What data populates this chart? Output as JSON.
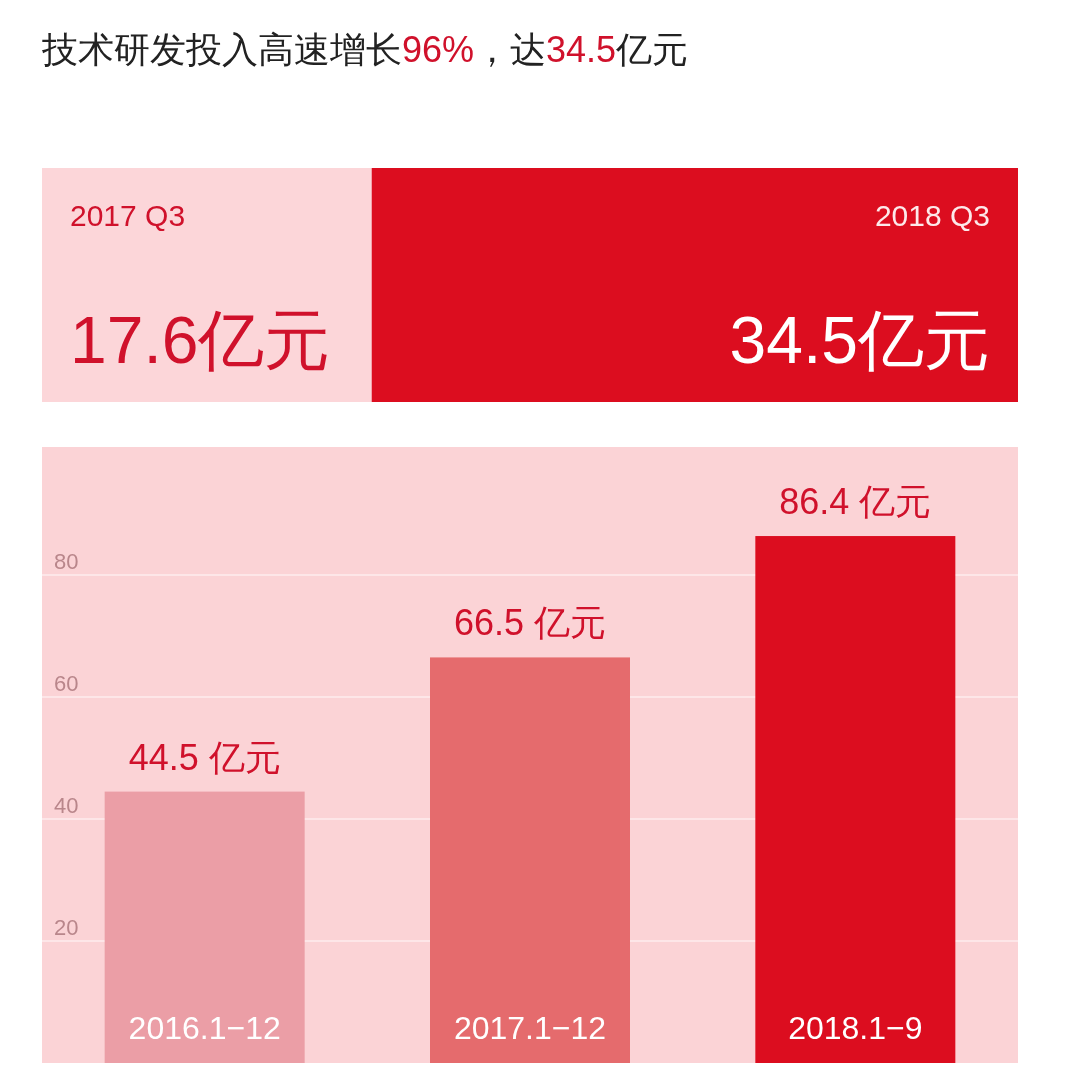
{
  "chart_data": [
    {
      "type": "bar",
      "title": "技术研发投入高速增长96%，达34.5亿元",
      "orientation": "horizontal",
      "stacked": true,
      "categories": [
        null
      ],
      "series": [
        {
          "name": "2017 Q3",
          "color": "#fcd6d9",
          "values": [
            17.6
          ],
          "value_labels": [
            "17.6亿元"
          ]
        },
        {
          "name": "2018 Q3",
          "color": "#dc0d1f",
          "values": [
            34.5
          ],
          "value_labels": [
            "34.5亿元"
          ]
        }
      ]
    },
    {
      "type": "bar",
      "categories": [
        "2016.1−12",
        "2017.1−12",
        "2018.1−9"
      ],
      "values": [
        44.5,
        66.5,
        86.4
      ],
      "colors": [
        "#eb9ea6",
        "#e56b6d",
        "#dc0d1f"
      ],
      "value_labels": [
        "44.5 亿元",
        "66.5 亿元",
        "86.4 亿元"
      ],
      "ylim": [
        0,
        101
      ],
      "yticks": [
        20,
        40,
        60,
        80
      ],
      "grid": "y"
    }
  ]
}
